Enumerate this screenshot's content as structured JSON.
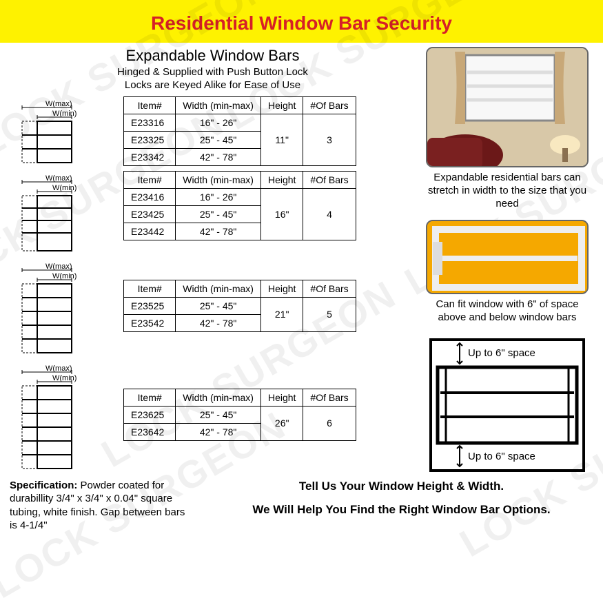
{
  "header": {
    "title": "Residential Window Bar Security"
  },
  "subtitle": "Expandable Window Bars",
  "subtitle_desc": "Hinged & Supplied with Push Button Lock\nLocks are Keyed Alike for Ease of Use",
  "diagram_labels": {
    "wmax": "W(max)",
    "wmin": "W(min)"
  },
  "tables": {
    "headers": {
      "item": "Item#",
      "width": "Width (min-max)",
      "height": "Height",
      "bars": "#Of Bars"
    },
    "t1": {
      "rows": [
        {
          "item": "E23316",
          "width": "16\" - 26\""
        },
        {
          "item": "E23325",
          "width": "25\" - 45\""
        },
        {
          "item": "E23342",
          "width": "42\" - 78\""
        }
      ],
      "height": "11\"",
      "bars": "3"
    },
    "t2": {
      "rows": [
        {
          "item": "E23416",
          "width": "16\" - 26\""
        },
        {
          "item": "E23425",
          "width": "25\" - 45\""
        },
        {
          "item": "E23442",
          "width": "42\" - 78\""
        }
      ],
      "height": "16\"",
      "bars": "4"
    },
    "t3": {
      "rows": [
        {
          "item": "E23525",
          "width": "25\" - 45\""
        },
        {
          "item": "E23542",
          "width": "42\" - 78\""
        }
      ],
      "height": "21\"",
      "bars": "5"
    },
    "t4": {
      "rows": [
        {
          "item": "E23625",
          "width": "25\" - 45\""
        },
        {
          "item": "E23642",
          "width": "42\" - 78\""
        }
      ],
      "height": "26\"",
      "bars": "6"
    }
  },
  "photo1_caption": "Expandable residential bars can stretch in width to the size that you need",
  "photo2_caption": "Can fit window with 6\" of space above and below window bars",
  "spacing_diag": {
    "top_label": "Up to 6\" space",
    "bottom_label": "Up to 6\" space"
  },
  "spec": {
    "label": "Specification:",
    "text": " Powder coated for durabillity 3/4\" x 3/4\" x 0.04\" square tubing, white finish. Gap between bars is 4-1/4\""
  },
  "cta": {
    "line1": "Tell Us Your Window Height & Width.",
    "line2": "We Will Help You Find the Right Window Bar Options."
  },
  "watermark_text": "LOCK SURGEON",
  "colors": {
    "accent_yellow": "#fef200",
    "accent_red": "#d62027",
    "border": "#000000"
  }
}
